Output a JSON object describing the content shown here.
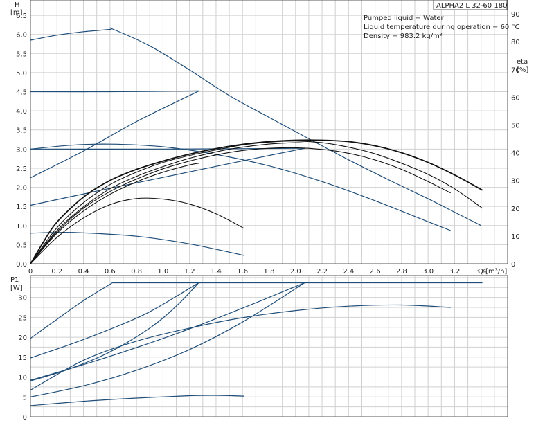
{
  "chart_data": [
    {
      "type": "line",
      "title": "ALPHA2 L 32-60 180",
      "info_lines": [
        "Pumped liquid = Water",
        "Liquid temperature during operation = 60 °C",
        "Density = 983.2 kg/m³"
      ],
      "ylabel": "H",
      "yunit": "[m]",
      "xlabel": "Q [m³/h]",
      "y2label": "eta",
      "y2unit": "[%]",
      "xlim": [
        0,
        3.6
      ],
      "ylim": [
        0,
        6.9
      ],
      "y2lim": [
        0,
        95
      ],
      "grid": true,
      "x_ticks": [
        "0",
        "0.2",
        "0.4",
        "0.6",
        "0.8",
        "1.0",
        "1.2",
        "1.4",
        "1.6",
        "1.8",
        "2.0",
        "2.2",
        "2.4",
        "2.6",
        "2.8",
        "3.0",
        "3.2",
        "3.4"
      ],
      "y_ticks": [
        "0.0",
        "0.5",
        "1.0",
        "1.5",
        "2.0",
        "2.5",
        "3.0",
        "3.5",
        "4.0",
        "4.5",
        "5.0",
        "5.5",
        "6.0",
        "6.5"
      ],
      "y2_ticks": [
        "0",
        "10",
        "20",
        "30",
        "40",
        "50",
        "60",
        "70",
        "80",
        "90"
      ],
      "series": [
        {
          "axis": "left",
          "style": "blue",
          "x": [
            0,
            0.2,
            0.4,
            0.6,
            0.62,
            0.9,
            1.2,
            1.5,
            1.8,
            2.1,
            2.4,
            2.7,
            3.0,
            3.2,
            3.4
          ],
          "y": [
            5.85,
            5.98,
            6.07,
            6.13,
            6.14,
            5.7,
            5.07,
            4.4,
            3.83,
            3.27,
            2.72,
            2.2,
            1.7,
            1.35,
            1.0
          ]
        },
        {
          "axis": "left",
          "style": "blue",
          "x": [
            0,
            0.6,
            1.27
          ],
          "y": [
            4.5,
            4.5,
            4.52
          ]
        },
        {
          "axis": "left",
          "style": "blue",
          "x": [
            0,
            0.4,
            0.8,
            1.27
          ],
          "y": [
            2.25,
            2.95,
            3.72,
            4.52
          ]
        },
        {
          "axis": "left",
          "style": "blue",
          "x": [
            0,
            1.0,
            2.07
          ],
          "y": [
            3.0,
            3.0,
            3.02
          ]
        },
        {
          "axis": "left",
          "style": "blue",
          "x": [
            0,
            0.5,
            1.0,
            1.5,
            2.07
          ],
          "y": [
            1.53,
            1.9,
            2.26,
            2.62,
            3.02
          ]
        },
        {
          "axis": "left",
          "style": "blue",
          "x": [
            0,
            0.3,
            0.6,
            1.0,
            1.4,
            1.8,
            2.2,
            2.6,
            3.0,
            3.17
          ],
          "y": [
            3.0,
            3.1,
            3.13,
            3.06,
            2.86,
            2.56,
            2.15,
            1.65,
            1.1,
            0.87
          ]
        },
        {
          "axis": "left",
          "style": "blue",
          "x": [
            0,
            0.2,
            0.4,
            0.8,
            1.2,
            1.61
          ],
          "y": [
            0.8,
            0.82,
            0.81,
            0.72,
            0.52,
            0.22
          ]
        },
        {
          "axis": "right",
          "style": "black-bold",
          "x": [
            0,
            0.1,
            0.2,
            0.4,
            0.6,
            0.8,
            1.0,
            1.2,
            1.4,
            1.6,
            1.8,
            2.0,
            2.2,
            2.4,
            2.6,
            2.8,
            3.0,
            3.2,
            3.41
          ],
          "y": [
            0,
            8,
            15,
            24,
            30,
            34,
            37,
            39.5,
            41.5,
            43,
            44,
            44.5,
            44.5,
            44,
            42.5,
            40,
            36.5,
            32,
            26.5
          ]
        },
        {
          "axis": "right",
          "style": "black",
          "x": [
            0,
            0.2,
            0.4,
            0.6,
            0.8,
            1.0,
            1.2,
            1.4,
            1.6,
            1.8,
            2.0,
            2.2,
            2.4,
            2.6,
            2.8,
            3.0,
            3.2,
            3.41
          ],
          "y": [
            0,
            13,
            22,
            28.5,
            33,
            36.5,
            39,
            41,
            42.8,
            43.8,
            44.2,
            43.6,
            42,
            39.6,
            36.2,
            32.2,
            27,
            20
          ]
        },
        {
          "axis": "right",
          "style": "black",
          "x": [
            0,
            0.2,
            0.4,
            0.6,
            0.8,
            1.0,
            1.2,
            1.4,
            1.6,
            1.8,
            2.0,
            2.07
          ],
          "y": [
            0,
            12,
            20.5,
            27,
            31.5,
            35,
            38,
            40.3,
            42,
            43.1,
            43.6,
            43.5
          ]
        },
        {
          "axis": "right",
          "style": "black",
          "x": [
            0,
            0.2,
            0.4,
            0.6,
            0.8,
            1.0,
            1.2,
            1.4,
            1.6,
            1.8,
            2.0,
            2.2,
            2.4,
            2.6,
            2.8,
            3.0,
            3.17
          ],
          "y": [
            0,
            11.5,
            20,
            26,
            30.5,
            34.2,
            37,
            39.2,
            40.8,
            41.6,
            41.8,
            41.2,
            39.8,
            37.4,
            34,
            29.6,
            25.5
          ]
        },
        {
          "axis": "right",
          "style": "black",
          "x": [
            0,
            0.2,
            0.4,
            0.6,
            0.8,
            1.0,
            1.2,
            1.27
          ],
          "y": [
            0,
            11,
            19,
            25,
            29.5,
            33,
            35.6,
            36.2
          ]
        },
        {
          "axis": "right",
          "style": "black",
          "x": [
            0,
            0.2,
            0.4,
            0.6,
            0.8,
            1.0,
            1.2,
            1.4,
            1.61
          ],
          "y": [
            0,
            9.5,
            16.5,
            21.3,
            23.5,
            23.3,
            21.5,
            18,
            12.8
          ]
        }
      ]
    },
    {
      "type": "line",
      "ylabel": "P1",
      "yunit": "[W]",
      "xlim": [
        0,
        3.6
      ],
      "ylim": [
        0,
        35.5
      ],
      "grid": true,
      "y_ticks": [
        "0",
        "5",
        "10",
        "15",
        "20",
        "25",
        "30"
      ],
      "series": [
        {
          "style": "blue-bold",
          "x": [
            0.62,
            3.41
          ],
          "y": [
            33.7,
            33.7
          ]
        },
        {
          "style": "blue",
          "x": [
            0,
            0.2,
            0.4,
            0.62
          ],
          "y": [
            19.7,
            24.5,
            29.2,
            33.7
          ]
        },
        {
          "style": "blue",
          "x": [
            0,
            0.3,
            0.6,
            0.9,
            1.27
          ],
          "y": [
            14.8,
            18.2,
            22.0,
            26.4,
            33.7
          ]
        },
        {
          "style": "blue",
          "x": [
            0,
            0.3,
            0.6,
            0.9,
            1.1,
            1.27
          ],
          "y": [
            9.0,
            12.1,
            16.3,
            22.3,
            27.8,
            33.7
          ]
        },
        {
          "style": "blue",
          "x": [
            0,
            0.4,
            0.8,
            1.2,
            1.6,
            2.07
          ],
          "y": [
            9.2,
            13.1,
            17.4,
            22.1,
            27.3,
            33.7
          ]
        },
        {
          "style": "blue",
          "x": [
            0,
            0.4,
            0.8,
            1.2,
            1.6,
            2.07
          ],
          "y": [
            5.0,
            7.8,
            11.7,
            16.9,
            23.8,
            33.7
          ]
        },
        {
          "style": "blue",
          "x": [
            0,
            0.4,
            0.8,
            1.2,
            1.6,
            2.0,
            2.4,
            2.8,
            3.17
          ],
          "y": [
            6.7,
            14.2,
            19.0,
            22.3,
            24.9,
            26.7,
            27.8,
            28.1,
            27.5
          ]
        },
        {
          "style": "blue",
          "x": [
            0,
            0.4,
            0.8,
            1.2,
            1.4,
            1.61
          ],
          "y": [
            2.8,
            3.9,
            4.7,
            5.3,
            5.4,
            5.2
          ]
        }
      ]
    }
  ]
}
